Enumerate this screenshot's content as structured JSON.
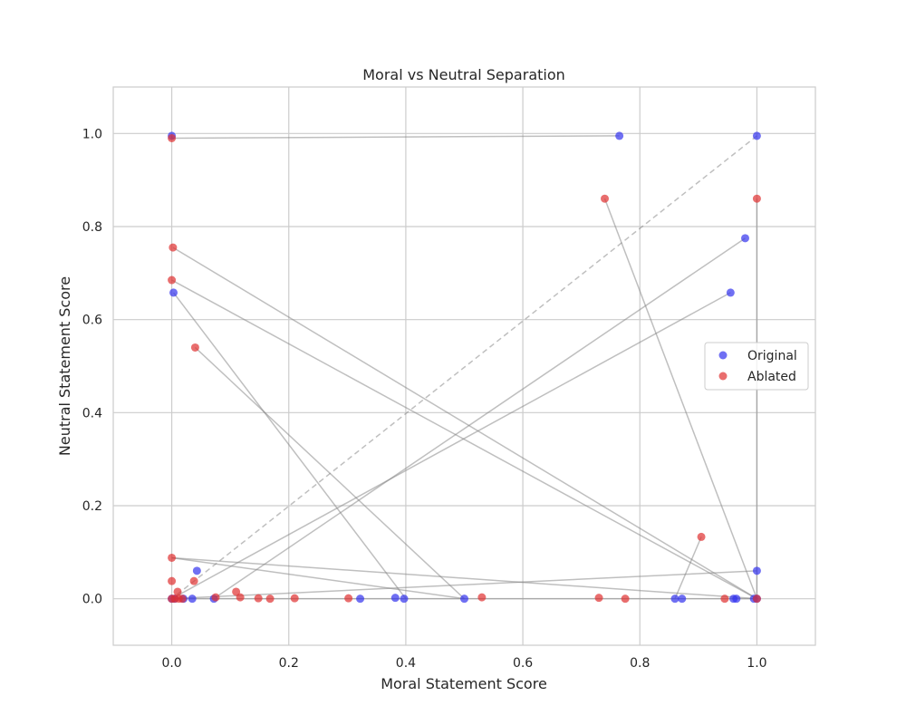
{
  "chart_data": {
    "type": "scatter",
    "title": "Moral vs Neutral Separation",
    "xlabel": "Moral Statement Score",
    "ylabel": "Neutral Statement Score",
    "xlim": [
      -0.1,
      1.1
    ],
    "ylim": [
      -0.1,
      1.1
    ],
    "xticks": [
      "0.0",
      "0.2",
      "0.4",
      "0.6",
      "0.8",
      "1.0"
    ],
    "yticks": [
      "0.0",
      "0.2",
      "0.4",
      "0.6",
      "0.8",
      "1.0"
    ],
    "grid": true,
    "legend_position": "center-right",
    "series": [
      {
        "name": "Original",
        "color": "#3333ee",
        "points": [
          [
            0.0,
            0.995
          ],
          [
            0.765,
            0.995
          ],
          [
            1.0,
            0.995
          ],
          [
            0.003,
            0.658
          ],
          [
            0.955,
            0.658
          ],
          [
            0.98,
            0.775
          ],
          [
            0.043,
            0.06
          ],
          [
            1.0,
            0.06
          ],
          [
            0.0,
            0.0
          ],
          [
            0.005,
            0.0
          ],
          [
            0.02,
            0.0
          ],
          [
            0.035,
            0.0
          ],
          [
            0.072,
            0.0
          ],
          [
            0.322,
            0.0
          ],
          [
            0.382,
            0.002
          ],
          [
            0.397,
            0.0
          ],
          [
            0.5,
            0.0
          ],
          [
            0.86,
            0.0
          ],
          [
            0.872,
            0.0
          ],
          [
            0.96,
            0.0
          ],
          [
            0.965,
            0.0
          ],
          [
            0.995,
            0.0
          ],
          [
            1.0,
            0.0
          ]
        ]
      },
      {
        "name": "Ablated",
        "color": "#e03030",
        "points": [
          [
            0.0,
            0.99
          ],
          [
            0.74,
            0.86
          ],
          [
            1.0,
            0.86
          ],
          [
            0.002,
            0.755
          ],
          [
            0.0,
            0.685
          ],
          [
            0.04,
            0.54
          ],
          [
            0.905,
            0.133
          ],
          [
            0.0,
            0.088
          ],
          [
            0.0,
            0.038
          ],
          [
            0.038,
            0.038
          ],
          [
            0.01,
            0.015
          ],
          [
            0.11,
            0.015
          ],
          [
            0.0,
            0.0
          ],
          [
            0.005,
            0.0
          ],
          [
            0.012,
            0.0
          ],
          [
            0.018,
            0.0
          ],
          [
            0.075,
            0.003
          ],
          [
            0.117,
            0.003
          ],
          [
            0.148,
            0.001
          ],
          [
            0.168,
            0.0
          ],
          [
            0.21,
            0.001
          ],
          [
            0.302,
            0.001
          ],
          [
            0.53,
            0.003
          ],
          [
            0.73,
            0.002
          ],
          [
            0.775,
            0.0
          ],
          [
            0.945,
            0.0
          ],
          [
            1.0,
            0.0
          ]
        ]
      }
    ],
    "connections": [
      {
        "from": [
          0.0,
          0.995
        ],
        "to": [
          0.0,
          0.99
        ],
        "style": "solid"
      },
      {
        "from": [
          0.765,
          0.995
        ],
        "to": [
          0.0,
          0.99
        ],
        "style": "solid"
      },
      {
        "from": [
          1.0,
          0.995
        ],
        "to": [
          0.0,
          0.0
        ],
        "style": "dashed"
      },
      {
        "from": [
          0.003,
          0.658
        ],
        "to": [
          0.4,
          0.0
        ],
        "style": "solid"
      },
      {
        "from": [
          0.955,
          0.658
        ],
        "to": [
          0.0,
          0.0
        ],
        "style": "solid"
      },
      {
        "from": [
          0.98,
          0.775
        ],
        "to": [
          0.075,
          0.003
        ],
        "style": "solid"
      },
      {
        "from": [
          1.0,
          0.0
        ],
        "to": [
          1.0,
          0.86
        ],
        "style": "solid"
      },
      {
        "from": [
          1.0,
          0.0
        ],
        "to": [
          0.74,
          0.86
        ],
        "style": "solid"
      },
      {
        "from": [
          1.0,
          0.0
        ],
        "to": [
          0.002,
          0.755
        ],
        "style": "solid"
      },
      {
        "from": [
          1.0,
          0.0
        ],
        "to": [
          0.0,
          0.685
        ],
        "style": "solid"
      },
      {
        "from": [
          0.5,
          0.0
        ],
        "to": [
          0.04,
          0.54
        ],
        "style": "solid"
      },
      {
        "from": [
          0.86,
          0.0
        ],
        "to": [
          0.905,
          0.133
        ],
        "style": "solid"
      },
      {
        "from": [
          1.0,
          0.06
        ],
        "to": [
          0.0,
          0.0
        ],
        "style": "solid"
      },
      {
        "from": [
          0.0,
          0.088
        ],
        "to": [
          0.5,
          0.0
        ],
        "style": "solid"
      },
      {
        "from": [
          0.0,
          0.088
        ],
        "to": [
          1.0,
          0.0
        ],
        "style": "solid"
      },
      {
        "from": [
          0.0,
          0.0
        ],
        "to": [
          1.0,
          0.0
        ],
        "style": "solid"
      }
    ]
  }
}
